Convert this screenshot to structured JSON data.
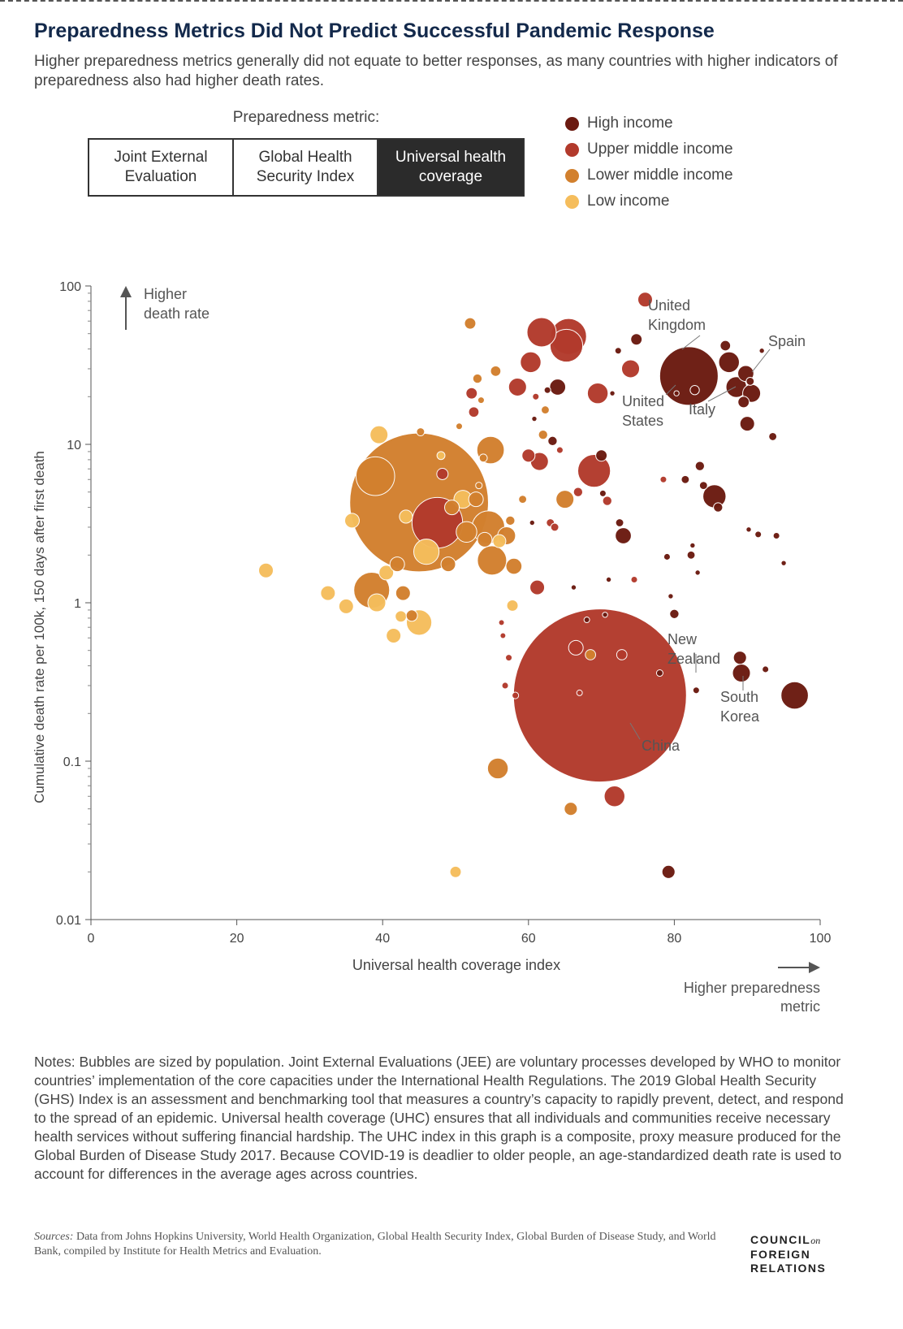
{
  "title": "Preparedness Metrics Did Not Predict Successful Pandemic Response",
  "subtitle": "Higher preparedness metrics generally did not equate to better responses, as many countries with higher indicators of preparedness also had higher death rates.",
  "metric_label": "Preparedness metric:",
  "metric_options": [
    {
      "label": "Joint External Evaluation",
      "active": false
    },
    {
      "label": "Global Health Security Index",
      "active": false
    },
    {
      "label": "Universal health coverage",
      "active": true
    }
  ],
  "legend": [
    {
      "label": "High income",
      "color": "#6b1a10"
    },
    {
      "label": "Upper middle income",
      "color": "#b23a2c"
    },
    {
      "label": "Lower middle income",
      "color": "#d2802e"
    },
    {
      "label": "Low income",
      "color": "#f5bd5c"
    }
  ],
  "chart_data": {
    "type": "scatter",
    "xlabel": "Universal health coverage index",
    "ylabel": "Cumulative death rate per 100k, 150 days after first death",
    "xlim": [
      0,
      100
    ],
    "ylim": [
      0.01,
      100
    ],
    "y_scale": "log",
    "x_ticks": [
      "0",
      "20",
      "40",
      "60",
      "80",
      "100"
    ],
    "y_ticks": [
      "100",
      "10",
      "1",
      "0.1",
      "0.01"
    ],
    "y_direction_label": "Higher death rate",
    "x_direction_label": "Higher preparedness metric",
    "annotations": [
      {
        "text": "United Kingdom",
        "x": 82,
        "y": 27
      },
      {
        "text": "Spain",
        "x": 90,
        "y": 28
      },
      {
        "text": "United States",
        "x": 80,
        "y": 21
      },
      {
        "text": "Italy",
        "x": 89,
        "y": 24
      },
      {
        "text": "New Zealand",
        "x": 83,
        "y": 0.28
      },
      {
        "text": "South Korea",
        "x": 89,
        "y": 0.37
      },
      {
        "text": "China",
        "x": 70,
        "y": 0.26
      }
    ],
    "points": [
      {
        "x": 24,
        "y": 1.6,
        "income": "Low income",
        "size": 1
      },
      {
        "x": 32.5,
        "y": 1.15,
        "income": "Low income",
        "size": 1
      },
      {
        "x": 35,
        "y": 0.95,
        "income": "Low income",
        "size": 1
      },
      {
        "x": 35.8,
        "y": 3.3,
        "income": "Low income",
        "size": 1
      },
      {
        "x": 39,
        "y": 6.3,
        "income": "Lower middle income",
        "size": 7
      },
      {
        "x": 38.5,
        "y": 1.2,
        "income": "Lower middle income",
        "size": 6
      },
      {
        "x": 39.2,
        "y": 1.0,
        "income": "Low income",
        "size": 1.5
      },
      {
        "x": 39.5,
        "y": 11.5,
        "income": "Low income",
        "size": 1.5
      },
      {
        "x": 40.5,
        "y": 1.55,
        "income": "Low income",
        "size": 1
      },
      {
        "x": 41.5,
        "y": 0.62,
        "income": "Low income",
        "size": 1
      },
      {
        "x": 42,
        "y": 1.75,
        "income": "Lower middle income",
        "size": 1
      },
      {
        "x": 42.5,
        "y": 0.82,
        "income": "Low income",
        "size": 0.6
      },
      {
        "x": 42.8,
        "y": 1.15,
        "income": "Lower middle income",
        "size": 1
      },
      {
        "x": 43.2,
        "y": 3.5,
        "income": "Low income",
        "size": 0.8
      },
      {
        "x": 44,
        "y": 0.83,
        "income": "Lower middle income",
        "size": 0.6
      },
      {
        "x": 45,
        "y": 0.75,
        "income": "Low income",
        "size": 3
      },
      {
        "x": 45,
        "y": 4.3,
        "income": "Lower middle income",
        "size": 90
      },
      {
        "x": 45.2,
        "y": 12,
        "income": "Lower middle income",
        "size": 0.3
      },
      {
        "x": 46,
        "y": 2.1,
        "income": "Low income",
        "size": 3
      },
      {
        "x": 47.5,
        "y": 3.2,
        "income": "Upper middle income",
        "size": 12
      },
      {
        "x": 48,
        "y": 8.5,
        "income": "Low income",
        "size": 0.3
      },
      {
        "x": 48.2,
        "y": 6.5,
        "income": "Upper middle income",
        "size": 0.6
      },
      {
        "x": 49,
        "y": 1.75,
        "income": "Lower middle income",
        "size": 1
      },
      {
        "x": 49.5,
        "y": 4.0,
        "income": "Lower middle income",
        "size": 1
      },
      {
        "x": 50,
        "y": 0.02,
        "income": "Low income",
        "size": 0.6
      },
      {
        "x": 50.5,
        "y": 13,
        "income": "Lower middle income",
        "size": 0.2
      },
      {
        "x": 51,
        "y": 4.5,
        "income": "Low income",
        "size": 1.5
      },
      {
        "x": 51.5,
        "y": 2.8,
        "income": "Lower middle income",
        "size": 2
      },
      {
        "x": 52,
        "y": 58,
        "income": "Lower middle income",
        "size": 0.6
      },
      {
        "x": 52.2,
        "y": 21,
        "income": "Upper middle income",
        "size": 0.6
      },
      {
        "x": 52.5,
        "y": 16,
        "income": "Upper middle income",
        "size": 0.5
      },
      {
        "x": 52.8,
        "y": 4.5,
        "income": "Lower middle income",
        "size": 1
      },
      {
        "x": 53,
        "y": 26,
        "income": "Lower middle income",
        "size": 0.4
      },
      {
        "x": 53.2,
        "y": 5.5,
        "income": "Lower middle income",
        "size": 0.2
      },
      {
        "x": 53.5,
        "y": 19,
        "income": "Lower middle income",
        "size": 0.2
      },
      {
        "x": 53.8,
        "y": 8.2,
        "income": "Lower middle income",
        "size": 0.3
      },
      {
        "x": 54,
        "y": 2.5,
        "income": "Lower middle income",
        "size": 1
      },
      {
        "x": 54.5,
        "y": 3.0,
        "income": "Lower middle income",
        "size": 5
      },
      {
        "x": 54.8,
        "y": 9.2,
        "income": "Lower middle income",
        "size": 3.5
      },
      {
        "x": 55,
        "y": 1.85,
        "income": "Lower middle income",
        "size": 4
      },
      {
        "x": 55.5,
        "y": 29,
        "income": "Lower middle income",
        "size": 0.5
      },
      {
        "x": 55.8,
        "y": 0.09,
        "income": "Lower middle income",
        "size": 2
      },
      {
        "x": 56,
        "y": 2.45,
        "income": "Low income",
        "size": 0.8
      },
      {
        "x": 56.3,
        "y": 0.75,
        "income": "Upper middle income",
        "size": 0.15
      },
      {
        "x": 56.5,
        "y": 0.62,
        "income": "Upper middle income",
        "size": 0.15
      },
      {
        "x": 56.8,
        "y": 0.3,
        "income": "Upper middle income",
        "size": 0.2
      },
      {
        "x": 57,
        "y": 2.65,
        "income": "Lower middle income",
        "size": 1.5
      },
      {
        "x": 57.3,
        "y": 0.45,
        "income": "Upper middle income",
        "size": 0.2
      },
      {
        "x": 57.5,
        "y": 3.3,
        "income": "Lower middle income",
        "size": 0.4
      },
      {
        "x": 57.8,
        "y": 0.96,
        "income": "Low income",
        "size": 0.6
      },
      {
        "x": 58,
        "y": 1.7,
        "income": "Lower middle income",
        "size": 1.2
      },
      {
        "x": 58.2,
        "y": 0.26,
        "income": "Upper middle income",
        "size": 0.2
      },
      {
        "x": 58.5,
        "y": 23,
        "income": "Upper middle income",
        "size": 1.5
      },
      {
        "x": 59.2,
        "y": 4.5,
        "income": "Lower middle income",
        "size": 0.3
      },
      {
        "x": 60,
        "y": 8.5,
        "income": "Upper middle income",
        "size": 0.8
      },
      {
        "x": 60.3,
        "y": 33,
        "income": "Upper middle income",
        "size": 2
      },
      {
        "x": 60.5,
        "y": 3.2,
        "income": "High income",
        "size": 0.1
      },
      {
        "x": 60.8,
        "y": 14.5,
        "income": "High income",
        "size": 0.1
      },
      {
        "x": 61,
        "y": 20,
        "income": "Upper middle income",
        "size": 0.2
      },
      {
        "x": 61.2,
        "y": 1.25,
        "income": "Upper middle income",
        "size": 1
      },
      {
        "x": 61.5,
        "y": 7.8,
        "income": "Upper middle income",
        "size": 1.5
      },
      {
        "x": 61.8,
        "y": 51,
        "income": "Upper middle income",
        "size": 4
      },
      {
        "x": 62,
        "y": 11.5,
        "income": "Lower middle income",
        "size": 0.4
      },
      {
        "x": 62.3,
        "y": 16.5,
        "income": "Lower middle income",
        "size": 0.3
      },
      {
        "x": 62.6,
        "y": 22,
        "income": "High income",
        "size": 0.2
      },
      {
        "x": 63,
        "y": 3.2,
        "income": "Upper middle income",
        "size": 0.3
      },
      {
        "x": 63.3,
        "y": 10.5,
        "income": "High income",
        "size": 0.4
      },
      {
        "x": 63.6,
        "y": 3.0,
        "income": "Upper middle income",
        "size": 0.3
      },
      {
        "x": 64,
        "y": 23,
        "income": "High income",
        "size": 1.2
      },
      {
        "x": 64.3,
        "y": 9.2,
        "income": "Upper middle income",
        "size": 0.2
      },
      {
        "x": 65,
        "y": 4.5,
        "income": "Lower middle income",
        "size": 1.5
      },
      {
        "x": 65.2,
        "y": 42,
        "income": "Upper middle income",
        "size": 5
      },
      {
        "x": 65.5,
        "y": 48,
        "income": "Upper middle income",
        "size": 6
      },
      {
        "x": 65.8,
        "y": 0.05,
        "income": "Lower middle income",
        "size": 0.8
      },
      {
        "x": 66.2,
        "y": 1.25,
        "income": "High income",
        "size": 0.05
      },
      {
        "x": 66.5,
        "y": 0.52,
        "income": "Upper middle income",
        "size": 1
      },
      {
        "x": 66.8,
        "y": 5.0,
        "income": "Upper middle income",
        "size": 0.4
      },
      {
        "x": 67,
        "y": 0.27,
        "income": "Upper middle income",
        "size": 0.15
      },
      {
        "x": 68,
        "y": 0.78,
        "income": "High income",
        "size": 0.15
      },
      {
        "x": 68.5,
        "y": 0.47,
        "income": "Lower middle income",
        "size": 0.5
      },
      {
        "x": 69,
        "y": 6.8,
        "income": "Upper middle income",
        "size": 5
      },
      {
        "x": 69.5,
        "y": 21,
        "income": "Upper middle income",
        "size": 2
      },
      {
        "x": 69.8,
        "y": 0.26,
        "income": "Upper middle income",
        "size": 140
      },
      {
        "x": 70,
        "y": 8.5,
        "income": "High income",
        "size": 0.6
      },
      {
        "x": 70.2,
        "y": 4.9,
        "income": "High income",
        "size": 0.2
      },
      {
        "x": 70.5,
        "y": 0.84,
        "income": "High income",
        "size": 0.1
      },
      {
        "x": 70.8,
        "y": 4.4,
        "income": "Upper middle income",
        "size": 0.4
      },
      {
        "x": 71,
        "y": 1.4,
        "income": "High income",
        "size": 0.1
      },
      {
        "x": 71.5,
        "y": 21,
        "income": "High income",
        "size": 0.1
      },
      {
        "x": 71.8,
        "y": 0.06,
        "income": "Upper middle income",
        "size": 2
      },
      {
        "x": 72.3,
        "y": 39,
        "income": "High income",
        "size": 0.2
      },
      {
        "x": 72.5,
        "y": 3.2,
        "income": "High income",
        "size": 0.3
      },
      {
        "x": 72.8,
        "y": 0.47,
        "income": "Upper middle income",
        "size": 0.5
      },
      {
        "x": 73,
        "y": 2.65,
        "income": "High income",
        "size": 1.2
      },
      {
        "x": 74,
        "y": 30,
        "income": "Upper middle income",
        "size": 1.5
      },
      {
        "x": 74.5,
        "y": 1.4,
        "income": "Upper middle income",
        "size": 0.2
      },
      {
        "x": 74.8,
        "y": 46,
        "income": "High income",
        "size": 0.6
      },
      {
        "x": 76,
        "y": 82,
        "income": "Upper middle income",
        "size": 1
      },
      {
        "x": 78,
        "y": 0.36,
        "income": "High income",
        "size": 0.2
      },
      {
        "x": 78.5,
        "y": 6.0,
        "income": "Upper middle income",
        "size": 0.2
      },
      {
        "x": 79,
        "y": 1.95,
        "income": "High income",
        "size": 0.2
      },
      {
        "x": 79.2,
        "y": 0.02,
        "income": "High income",
        "size": 0.8
      },
      {
        "x": 79.5,
        "y": 1.1,
        "income": "High income",
        "size": 0.05
      },
      {
        "x": 80,
        "y": 0.85,
        "income": "High income",
        "size": 0.4
      },
      {
        "x": 80.3,
        "y": 21,
        "income": "High income",
        "size": 0.1
      },
      {
        "x": 81.5,
        "y": 6.0,
        "income": "High income",
        "size": 0.3
      },
      {
        "x": 82,
        "y": 27,
        "income": "High income",
        "size": 16
      },
      {
        "x": 82.3,
        "y": 2.0,
        "income": "High income",
        "size": 0.3
      },
      {
        "x": 82.5,
        "y": 2.3,
        "income": "High income",
        "size": 0.05
      },
      {
        "x": 82.8,
        "y": 22,
        "income": "High income",
        "size": 0.4
      },
      {
        "x": 83,
        "y": 0.28,
        "income": "High income",
        "size": 0.2
      },
      {
        "x": 83.2,
        "y": 1.55,
        "income": "High income",
        "size": 0.05
      },
      {
        "x": 83.5,
        "y": 7.3,
        "income": "High income",
        "size": 0.4
      },
      {
        "x": 84,
        "y": 5.5,
        "income": "High income",
        "size": 0.3
      },
      {
        "x": 85.5,
        "y": 4.7,
        "income": "High income",
        "size": 2.5
      },
      {
        "x": 86,
        "y": 4.0,
        "income": "High income",
        "size": 0.4
      },
      {
        "x": 87,
        "y": 42,
        "income": "High income",
        "size": 0.5
      },
      {
        "x": 87.5,
        "y": 33,
        "income": "High income",
        "size": 2
      },
      {
        "x": 88.5,
        "y": 23,
        "income": "High income",
        "size": 2
      },
      {
        "x": 89,
        "y": 0.45,
        "income": "High income",
        "size": 0.8
      },
      {
        "x": 89.2,
        "y": 0.36,
        "income": "High income",
        "size": 1.5
      },
      {
        "x": 89.5,
        "y": 18.5,
        "income": "High income",
        "size": 0.6
      },
      {
        "x": 89.8,
        "y": 28,
        "income": "High income",
        "size": 1.2
      },
      {
        "x": 90,
        "y": 13.5,
        "income": "High income",
        "size": 1
      },
      {
        "x": 90.2,
        "y": 2.9,
        "income": "High income",
        "size": 0.1
      },
      {
        "x": 90.4,
        "y": 25,
        "income": "High income",
        "size": 0.3
      },
      {
        "x": 90.6,
        "y": 21,
        "income": "High income",
        "size": 1.5
      },
      {
        "x": 91.5,
        "y": 2.7,
        "income": "High income",
        "size": 0.2
      },
      {
        "x": 92,
        "y": 39,
        "income": "High income",
        "size": 0.05
      },
      {
        "x": 92.5,
        "y": 0.38,
        "income": "High income",
        "size": 0.2
      },
      {
        "x": 93.5,
        "y": 11.2,
        "income": "High income",
        "size": 0.3
      },
      {
        "x": 94,
        "y": 2.65,
        "income": "High income",
        "size": 0.2
      },
      {
        "x": 95,
        "y": 1.78,
        "income": "High income",
        "size": 0.05
      },
      {
        "x": 96.5,
        "y": 0.26,
        "income": "High income",
        "size": 3.5
      }
    ]
  },
  "notes": "Notes: Bubbles are sized by population. Joint External Evaluations (JEE) are voluntary processes developed by WHO to monitor countries’ implementation of the core capacities under the International Health Regulations. The 2019 Global Health Security (GHS) Index is an assessment and benchmarking tool that measures a country’s capacity to rapidly prevent, detect, and respond to the spread of an epidemic. Universal health coverage (UHC) ensures that all individuals and communities receive necessary health services without suffering financial hardship. The UHC index in this graph is a composite, proxy measure produced for the Global Burden of Disease Study 2017. Because COVID-19 is deadlier to older people, an age-standardized death rate is used to account for differences in the average ages across countries.",
  "sources_label": "Sources:",
  "sources_text": " Data from Johns Hopkins University, World Health Organization, Global Health Security Index, Global Burden of Disease Study, and World Bank, compiled by Institute for Health Metrics and Evaluation.",
  "logo": {
    "line1": "COUNCIL",
    "on": "on",
    "line2": "FOREIGN",
    "line3": "RELATIONS"
  }
}
